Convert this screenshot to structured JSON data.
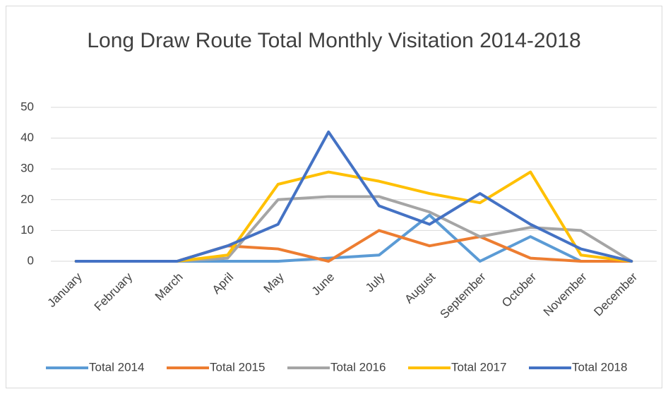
{
  "chart_data": {
    "type": "line",
    "title": "Long Draw Route Total Monthly Visitation 2014-2018",
    "categories": [
      "January",
      "February",
      "March",
      "April",
      "May",
      "June",
      "July",
      "August",
      "September",
      "October",
      "November",
      "December"
    ],
    "series": [
      {
        "name": "Total 2014",
        "color": "#5b9bd5",
        "values": [
          0,
          0,
          0,
          0,
          0,
          1,
          2,
          15,
          0,
          8,
          0,
          0
        ]
      },
      {
        "name": "Total 2015",
        "color": "#ed7d31",
        "values": [
          0,
          0,
          0,
          5,
          4,
          0,
          10,
          5,
          8,
          1,
          0,
          0
        ]
      },
      {
        "name": "Total 2016",
        "color": "#a5a5a5",
        "values": [
          0,
          0,
          0,
          1,
          20,
          21,
          21,
          16,
          8,
          11,
          10,
          0
        ]
      },
      {
        "name": "Total 2017",
        "color": "#ffc000",
        "values": [
          0,
          0,
          0,
          2,
          25,
          29,
          26,
          22,
          19,
          29,
          2,
          0
        ]
      },
      {
        "name": "Total 2018",
        "color": "#4472c4",
        "values": [
          0,
          0,
          0,
          5,
          12,
          42,
          18,
          12,
          22,
          12,
          4,
          0
        ]
      }
    ],
    "ylim": [
      0,
      50
    ],
    "yticks": [
      0,
      10,
      20,
      30,
      40,
      50
    ],
    "grid": true,
    "legend": "bottom"
  }
}
